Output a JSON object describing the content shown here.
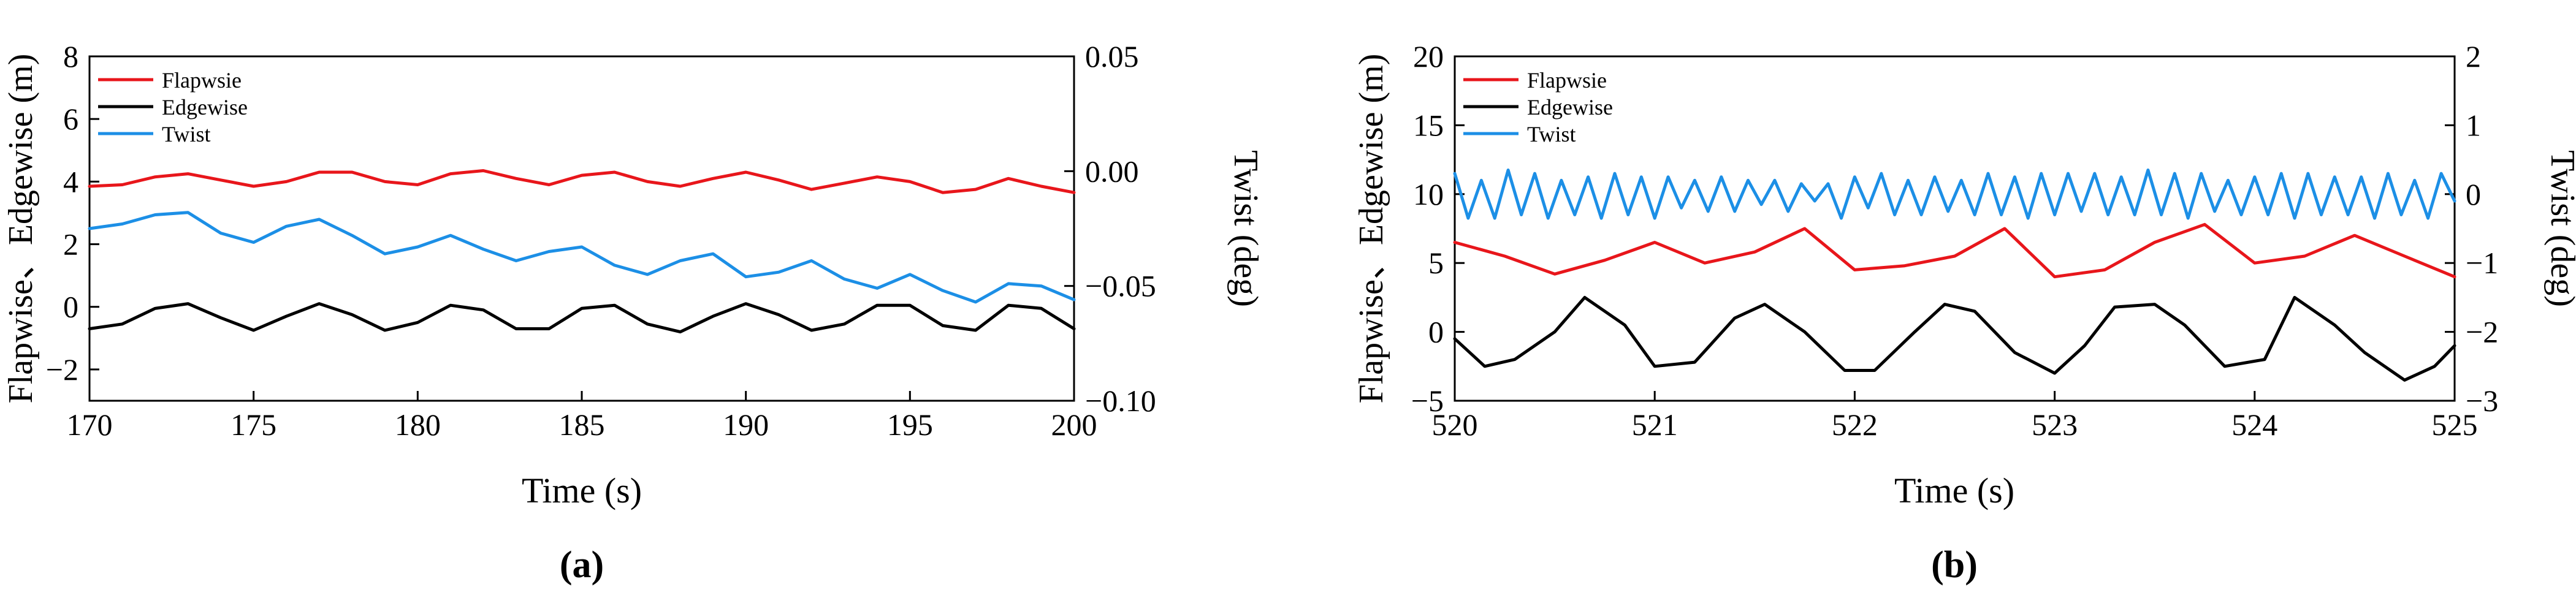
{
  "chart_data": [
    {
      "type": "line",
      "panel_label": "(a)",
      "xlabel": "Time (s)",
      "ylabel_left": "Flapwise、Edgewise (m)",
      "ylabel_right": "Twist (deg)",
      "xlim": [
        170,
        200
      ],
      "ylim_left": [
        -3,
        8
      ],
      "ylim_right": [
        -0.1,
        0.05
      ],
      "x_ticks": [
        "170",
        "175",
        "180",
        "185",
        "190",
        "195",
        "200"
      ],
      "y_ticks_left": [
        "−2",
        "0",
        "2",
        "4",
        "6",
        "8"
      ],
      "y_ticks_right": [
        "−0.10",
        "−0.05",
        "0.00",
        "0.05"
      ],
      "legend": [
        "Flapwsie",
        "Edgewise",
        "Twist"
      ],
      "legend_position": "top-left",
      "series": [
        {
          "name": "Flapwsie",
          "axis": "left",
          "color": "#e8161b",
          "x": [
            170,
            171,
            172,
            173,
            174,
            175,
            176,
            177,
            178,
            179,
            180,
            181,
            182,
            183,
            184,
            185,
            186,
            187,
            188,
            189,
            190,
            191,
            192,
            193,
            194,
            195,
            196,
            197,
            198,
            199,
            200
          ],
          "values": [
            3.85,
            3.9,
            4.15,
            4.25,
            4.05,
            3.85,
            4.0,
            4.3,
            4.3,
            4.0,
            3.9,
            4.25,
            4.35,
            4.1,
            3.9,
            4.2,
            4.3,
            4.0,
            3.85,
            4.1,
            4.3,
            4.05,
            3.75,
            3.95,
            4.15,
            4.0,
            3.65,
            3.75,
            4.1,
            3.85,
            3.65
          ]
        },
        {
          "name": "Edgewise",
          "axis": "left",
          "color": "#000000",
          "x": [
            170,
            171,
            172,
            173,
            174,
            175,
            176,
            177,
            178,
            179,
            180,
            181,
            182,
            183,
            184,
            185,
            186,
            187,
            188,
            189,
            190,
            191,
            192,
            193,
            194,
            195,
            196,
            197,
            198,
            199,
            200
          ],
          "values": [
            -0.7,
            -0.55,
            -0.05,
            0.1,
            -0.35,
            -0.75,
            -0.3,
            0.1,
            -0.25,
            -0.75,
            -0.5,
            0.05,
            -0.1,
            -0.7,
            -0.7,
            -0.05,
            0.05,
            -0.55,
            -0.8,
            -0.3,
            0.1,
            -0.25,
            -0.75,
            -0.55,
            0.05,
            0.05,
            -0.6,
            -0.75,
            0.05,
            -0.05,
            -0.7
          ]
        },
        {
          "name": "Twist",
          "axis": "right",
          "color": "#1c8fe6",
          "x": [
            170,
            171,
            172,
            173,
            174,
            175,
            176,
            177,
            178,
            179,
            180,
            181,
            182,
            183,
            184,
            185,
            186,
            187,
            188,
            189,
            190,
            191,
            192,
            193,
            194,
            195,
            196,
            197,
            198,
            199,
            200
          ],
          "values": [
            -0.025,
            -0.023,
            -0.019,
            -0.018,
            -0.027,
            -0.031,
            -0.024,
            -0.021,
            -0.028,
            -0.036,
            -0.033,
            -0.028,
            -0.034,
            -0.039,
            -0.035,
            -0.033,
            -0.041,
            -0.045,
            -0.039,
            -0.036,
            -0.046,
            -0.044,
            -0.039,
            -0.047,
            -0.051,
            -0.045,
            -0.052,
            -0.057,
            -0.049,
            -0.05,
            -0.056
          ]
        }
      ]
    },
    {
      "type": "line",
      "panel_label": "(b)",
      "xlabel": "Time (s)",
      "ylabel_left": "Flapwise、Edgewise (m)",
      "ylabel_right": "Twist (deg)",
      "xlim": [
        520,
        525
      ],
      "ylim_left": [
        -5,
        20
      ],
      "ylim_right": [
        -3,
        2
      ],
      "x_ticks": [
        "520",
        "521",
        "522",
        "523",
        "524",
        "525"
      ],
      "y_ticks_left": [
        "−5",
        "0",
        "5",
        "10",
        "15",
        "20"
      ],
      "y_ticks_right": [
        "−3",
        "−2",
        "−1",
        "0",
        "1",
        "2"
      ],
      "legend": [
        "Flapwsie",
        "Edgewise",
        "Twist"
      ],
      "legend_position": "top-left",
      "series": [
        {
          "name": "Flapwsie",
          "axis": "left",
          "color": "#e8161b",
          "x": [
            520,
            520.25,
            520.5,
            520.75,
            521,
            521.25,
            521.5,
            521.75,
            522,
            522.25,
            522.5,
            522.75,
            523,
            523.25,
            523.5,
            523.75,
            524,
            524.25,
            524.5,
            524.75,
            525
          ],
          "values": [
            6.5,
            5.5,
            4.2,
            5.2,
            6.5,
            5.0,
            5.8,
            7.5,
            4.5,
            4.8,
            5.5,
            7.5,
            4.0,
            4.5,
            6.5,
            7.8,
            5.0,
            5.5,
            7.0,
            5.5,
            4.0
          ]
        },
        {
          "name": "Edgewise",
          "axis": "left",
          "color": "#000000",
          "x": [
            520,
            520.15,
            520.3,
            520.5,
            520.65,
            520.85,
            521,
            521.2,
            521.4,
            521.55,
            521.75,
            521.95,
            522.1,
            522.3,
            522.45,
            522.6,
            522.8,
            523,
            523.15,
            523.3,
            523.5,
            523.65,
            523.85,
            524.05,
            524.2,
            524.4,
            524.55,
            524.75,
            524.9,
            525
          ],
          "values": [
            -0.5,
            -2.5,
            -2.0,
            0.0,
            2.5,
            0.5,
            -2.5,
            -2.2,
            1.0,
            2.0,
            0.0,
            -2.8,
            -2.8,
            0.0,
            2.0,
            1.5,
            -1.5,
            -3.0,
            -1.0,
            1.8,
            2.0,
            0.5,
            -2.5,
            -2.0,
            2.5,
            0.5,
            -1.5,
            -3.5,
            -2.5,
            -1.0
          ]
        },
        {
          "name": "Twist",
          "axis": "right",
          "color": "#1c8fe6",
          "x": [
            520,
            520.067,
            520.133,
            520.2,
            520.267,
            520.333,
            520.4,
            520.467,
            520.533,
            520.6,
            520.667,
            520.733,
            520.8,
            520.867,
            520.933,
            521,
            521.067,
            521.133,
            521.2,
            521.267,
            521.333,
            521.4,
            521.467,
            521.533,
            521.6,
            521.667,
            521.733,
            521.8,
            521.867,
            521.933,
            522,
            522.067,
            522.133,
            522.2,
            522.267,
            522.333,
            522.4,
            522.467,
            522.533,
            522.6,
            522.667,
            522.733,
            522.8,
            522.867,
            522.933,
            523,
            523.067,
            523.133,
            523.2,
            523.267,
            523.333,
            523.4,
            523.467,
            523.533,
            523.6,
            523.667,
            523.733,
            523.8,
            523.867,
            523.933,
            524,
            524.067,
            524.133,
            524.2,
            524.267,
            524.333,
            524.4,
            524.467,
            524.533,
            524.6,
            524.667,
            524.733,
            524.8,
            524.867,
            524.933,
            525
          ],
          "values": [
            0.3,
            -0.35,
            0.2,
            -0.35,
            0.35,
            -0.3,
            0.3,
            -0.35,
            0.2,
            -0.3,
            0.25,
            -0.35,
            0.3,
            -0.3,
            0.25,
            -0.35,
            0.25,
            -0.2,
            0.2,
            -0.25,
            0.25,
            -0.25,
            0.2,
            -0.15,
            0.2,
            -0.25,
            0.15,
            -0.1,
            0.15,
            -0.35,
            0.25,
            -0.2,
            0.3,
            -0.3,
            0.2,
            -0.3,
            0.25,
            -0.25,
            0.2,
            -0.3,
            0.3,
            -0.3,
            0.25,
            -0.35,
            0.3,
            -0.3,
            0.3,
            -0.25,
            0.3,
            -0.3,
            0.25,
            -0.3,
            0.35,
            -0.3,
            0.3,
            -0.35,
            0.3,
            -0.25,
            0.2,
            -0.3,
            0.25,
            -0.3,
            0.3,
            -0.35,
            0.3,
            -0.3,
            0.25,
            -0.3,
            0.25,
            -0.35,
            0.3,
            -0.3,
            0.2,
            -0.35,
            0.3,
            -0.1
          ]
        }
      ]
    }
  ]
}
